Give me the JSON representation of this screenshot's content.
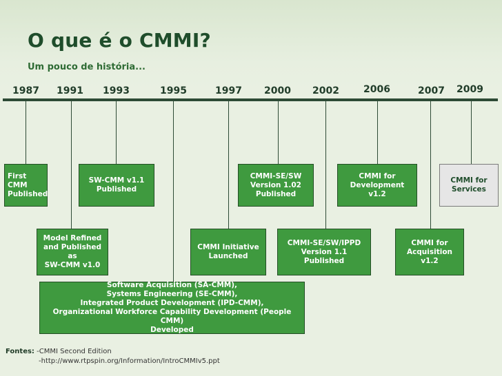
{
  "title": "O que é o CMMI?",
  "subtitle": "Um pouco de história...",
  "timeline": {
    "years": [
      "1987",
      "1991",
      "1993",
      "1995",
      "1997",
      "2000",
      "2002",
      "2006",
      "2007",
      "2009"
    ],
    "events": [
      {
        "year": "1987",
        "text": "First CMM\nPublished"
      },
      {
        "year": "1991",
        "text": "Model Refined\nand Published as\nSW-CMM v1.0"
      },
      {
        "year": "1993",
        "text": "SW-CMM v1.1\nPublished"
      },
      {
        "year": "1995",
        "text": "Software Acquisition (SA-CMM),\nSystems Engineering (SE-CMM),\nIntegrated Product Development (IPD-CMM),\nOrganizational Workforce Capability Development (People CMM)\nDeveloped"
      },
      {
        "year": "1997",
        "text": "CMMI Initiative\nLaunched"
      },
      {
        "year": "2000",
        "text": "CMMI-SE/SW\nVersion 1.02\nPublished"
      },
      {
        "year": "2002",
        "text": "CMMI-SE/SW/IPPD\nVersion 1.1\nPublished"
      },
      {
        "year": "2006",
        "text": "CMMI for\nDevelopment v1.2"
      },
      {
        "year": "2007",
        "text": "CMMI for\nAcquisition v1.2"
      },
      {
        "year": "2009",
        "text": "CMMI for\nServices"
      }
    ]
  },
  "sources": {
    "label": "Fontes:",
    "items": [
      "-CMMI Second Edition",
      "-http://www.rtpspin.org/Information/IntroCMMIv5.ppt"
    ]
  },
  "colors": {
    "box_fill": "#3f9a3f",
    "box_highlight": "#e6e6e6",
    "title": "#1f4d2b",
    "axis": "#2d4a35"
  }
}
